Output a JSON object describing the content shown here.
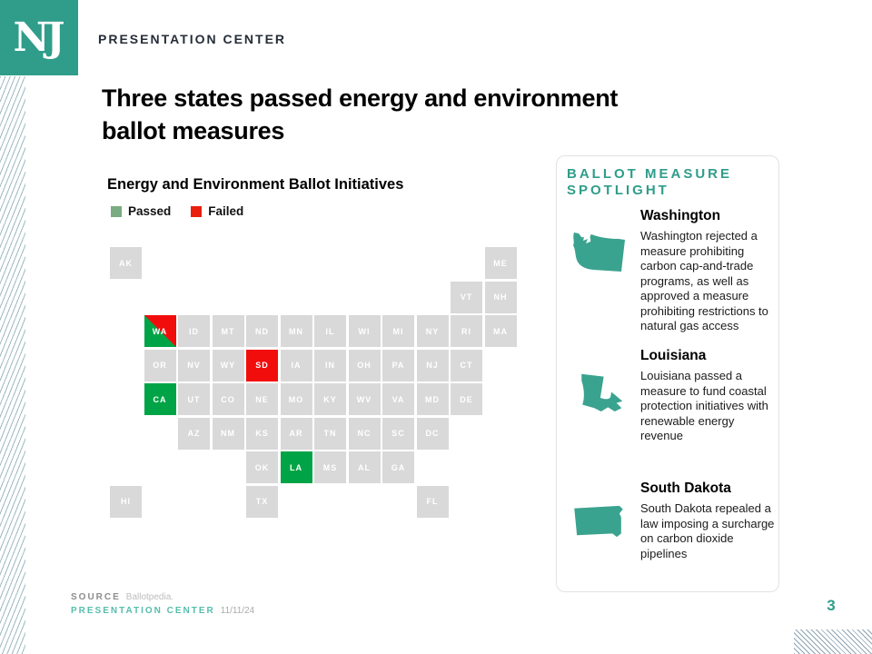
{
  "brand": {
    "logo_text": "NJ",
    "header_label": "PRESENTATION CENTER",
    "teal": "#2F9D8A"
  },
  "slide": {
    "title": "Three states passed energy and environment ballot measures",
    "page_number": "3"
  },
  "chart_data": {
    "type": "tile-grid-map",
    "title": "Energy and Environment Ballot Initiatives",
    "legend": [
      {
        "label": "Passed",
        "color": "#79AC80"
      },
      {
        "label": "Failed",
        "color": "#E8200D"
      }
    ],
    "status_colors": {
      "passed": "#00A446",
      "failed": "#F20D0D",
      "none": "#D9D9D9"
    },
    "states": [
      {
        "abbr": "AK",
        "row": 0,
        "col": 0,
        "status": "none"
      },
      {
        "abbr": "ME",
        "row": 0,
        "col": 11,
        "status": "none"
      },
      {
        "abbr": "VT",
        "row": 1,
        "col": 10,
        "status": "none"
      },
      {
        "abbr": "NH",
        "row": 1,
        "col": 11,
        "status": "none"
      },
      {
        "abbr": "WA",
        "row": 2,
        "col": 1,
        "status": "passed_and_failed"
      },
      {
        "abbr": "ID",
        "row": 2,
        "col": 2,
        "status": "none"
      },
      {
        "abbr": "MT",
        "row": 2,
        "col": 3,
        "status": "none"
      },
      {
        "abbr": "ND",
        "row": 2,
        "col": 4,
        "status": "none"
      },
      {
        "abbr": "MN",
        "row": 2,
        "col": 5,
        "status": "none"
      },
      {
        "abbr": "IL",
        "row": 2,
        "col": 6,
        "status": "none"
      },
      {
        "abbr": "WI",
        "row": 2,
        "col": 7,
        "status": "none"
      },
      {
        "abbr": "MI",
        "row": 2,
        "col": 8,
        "status": "none"
      },
      {
        "abbr": "NY",
        "row": 2,
        "col": 9,
        "status": "none"
      },
      {
        "abbr": "RI",
        "row": 2,
        "col": 10,
        "status": "none"
      },
      {
        "abbr": "MA",
        "row": 2,
        "col": 11,
        "status": "none"
      },
      {
        "abbr": "OR",
        "row": 3,
        "col": 1,
        "status": "none"
      },
      {
        "abbr": "NV",
        "row": 3,
        "col": 2,
        "status": "none"
      },
      {
        "abbr": "WY",
        "row": 3,
        "col": 3,
        "status": "none"
      },
      {
        "abbr": "SD",
        "row": 3,
        "col": 4,
        "status": "failed"
      },
      {
        "abbr": "IA",
        "row": 3,
        "col": 5,
        "status": "none"
      },
      {
        "abbr": "IN",
        "row": 3,
        "col": 6,
        "status": "none"
      },
      {
        "abbr": "OH",
        "row": 3,
        "col": 7,
        "status": "none"
      },
      {
        "abbr": "PA",
        "row": 3,
        "col": 8,
        "status": "none"
      },
      {
        "abbr": "NJ",
        "row": 3,
        "col": 9,
        "status": "none"
      },
      {
        "abbr": "CT",
        "row": 3,
        "col": 10,
        "status": "none"
      },
      {
        "abbr": "CA",
        "row": 4,
        "col": 1,
        "status": "passed"
      },
      {
        "abbr": "UT",
        "row": 4,
        "col": 2,
        "status": "none"
      },
      {
        "abbr": "CO",
        "row": 4,
        "col": 3,
        "status": "none"
      },
      {
        "abbr": "NE",
        "row": 4,
        "col": 4,
        "status": "none"
      },
      {
        "abbr": "MO",
        "row": 4,
        "col": 5,
        "status": "none"
      },
      {
        "abbr": "KY",
        "row": 4,
        "col": 6,
        "status": "none"
      },
      {
        "abbr": "WV",
        "row": 4,
        "col": 7,
        "status": "none"
      },
      {
        "abbr": "VA",
        "row": 4,
        "col": 8,
        "status": "none"
      },
      {
        "abbr": "MD",
        "row": 4,
        "col": 9,
        "status": "none"
      },
      {
        "abbr": "DE",
        "row": 4,
        "col": 10,
        "status": "none"
      },
      {
        "abbr": "AZ",
        "row": 5,
        "col": 2,
        "status": "none"
      },
      {
        "abbr": "NM",
        "row": 5,
        "col": 3,
        "status": "none"
      },
      {
        "abbr": "KS",
        "row": 5,
        "col": 4,
        "status": "none"
      },
      {
        "abbr": "AR",
        "row": 5,
        "col": 5,
        "status": "none"
      },
      {
        "abbr": "TN",
        "row": 5,
        "col": 6,
        "status": "none"
      },
      {
        "abbr": "NC",
        "row": 5,
        "col": 7,
        "status": "none"
      },
      {
        "abbr": "SC",
        "row": 5,
        "col": 8,
        "status": "none"
      },
      {
        "abbr": "DC",
        "row": 5,
        "col": 9,
        "status": "none"
      },
      {
        "abbr": "OK",
        "row": 6,
        "col": 4,
        "status": "none"
      },
      {
        "abbr": "LA",
        "row": 6,
        "col": 5,
        "status": "passed"
      },
      {
        "abbr": "MS",
        "row": 6,
        "col": 6,
        "status": "none"
      },
      {
        "abbr": "AL",
        "row": 6,
        "col": 7,
        "status": "none"
      },
      {
        "abbr": "GA",
        "row": 6,
        "col": 8,
        "status": "none"
      },
      {
        "abbr": "HI",
        "row": 7,
        "col": 0,
        "status": "none"
      },
      {
        "abbr": "TX",
        "row": 7,
        "col": 4,
        "status": "none"
      },
      {
        "abbr": "FL",
        "row": 7,
        "col": 9,
        "status": "none"
      }
    ]
  },
  "spotlight": {
    "heading": "BALLOT MEASURE SPOTLIGHT",
    "entries": [
      {
        "state": "Washington",
        "icon": "washington-state-icon",
        "text": "Washington rejected a measure prohibiting carbon cap-and-trade programs, as well as approved a measure prohibiting restrictions to natural gas access"
      },
      {
        "state": "Louisiana",
        "icon": "louisiana-state-icon",
        "text": "Louisiana passed a measure to fund coastal protection initiatives with renewable energy revenue"
      },
      {
        "state": "South Dakota",
        "icon": "south-dakota-state-icon",
        "text": "South Dakota repealed a law imposing a surcharge on carbon dioxide pipelines"
      }
    ]
  },
  "footer": {
    "source_label": "SOURCE",
    "source_value": "Ballotpedia.",
    "brand_label": "PRESENTATION CENTER",
    "date": "11/11/24"
  }
}
